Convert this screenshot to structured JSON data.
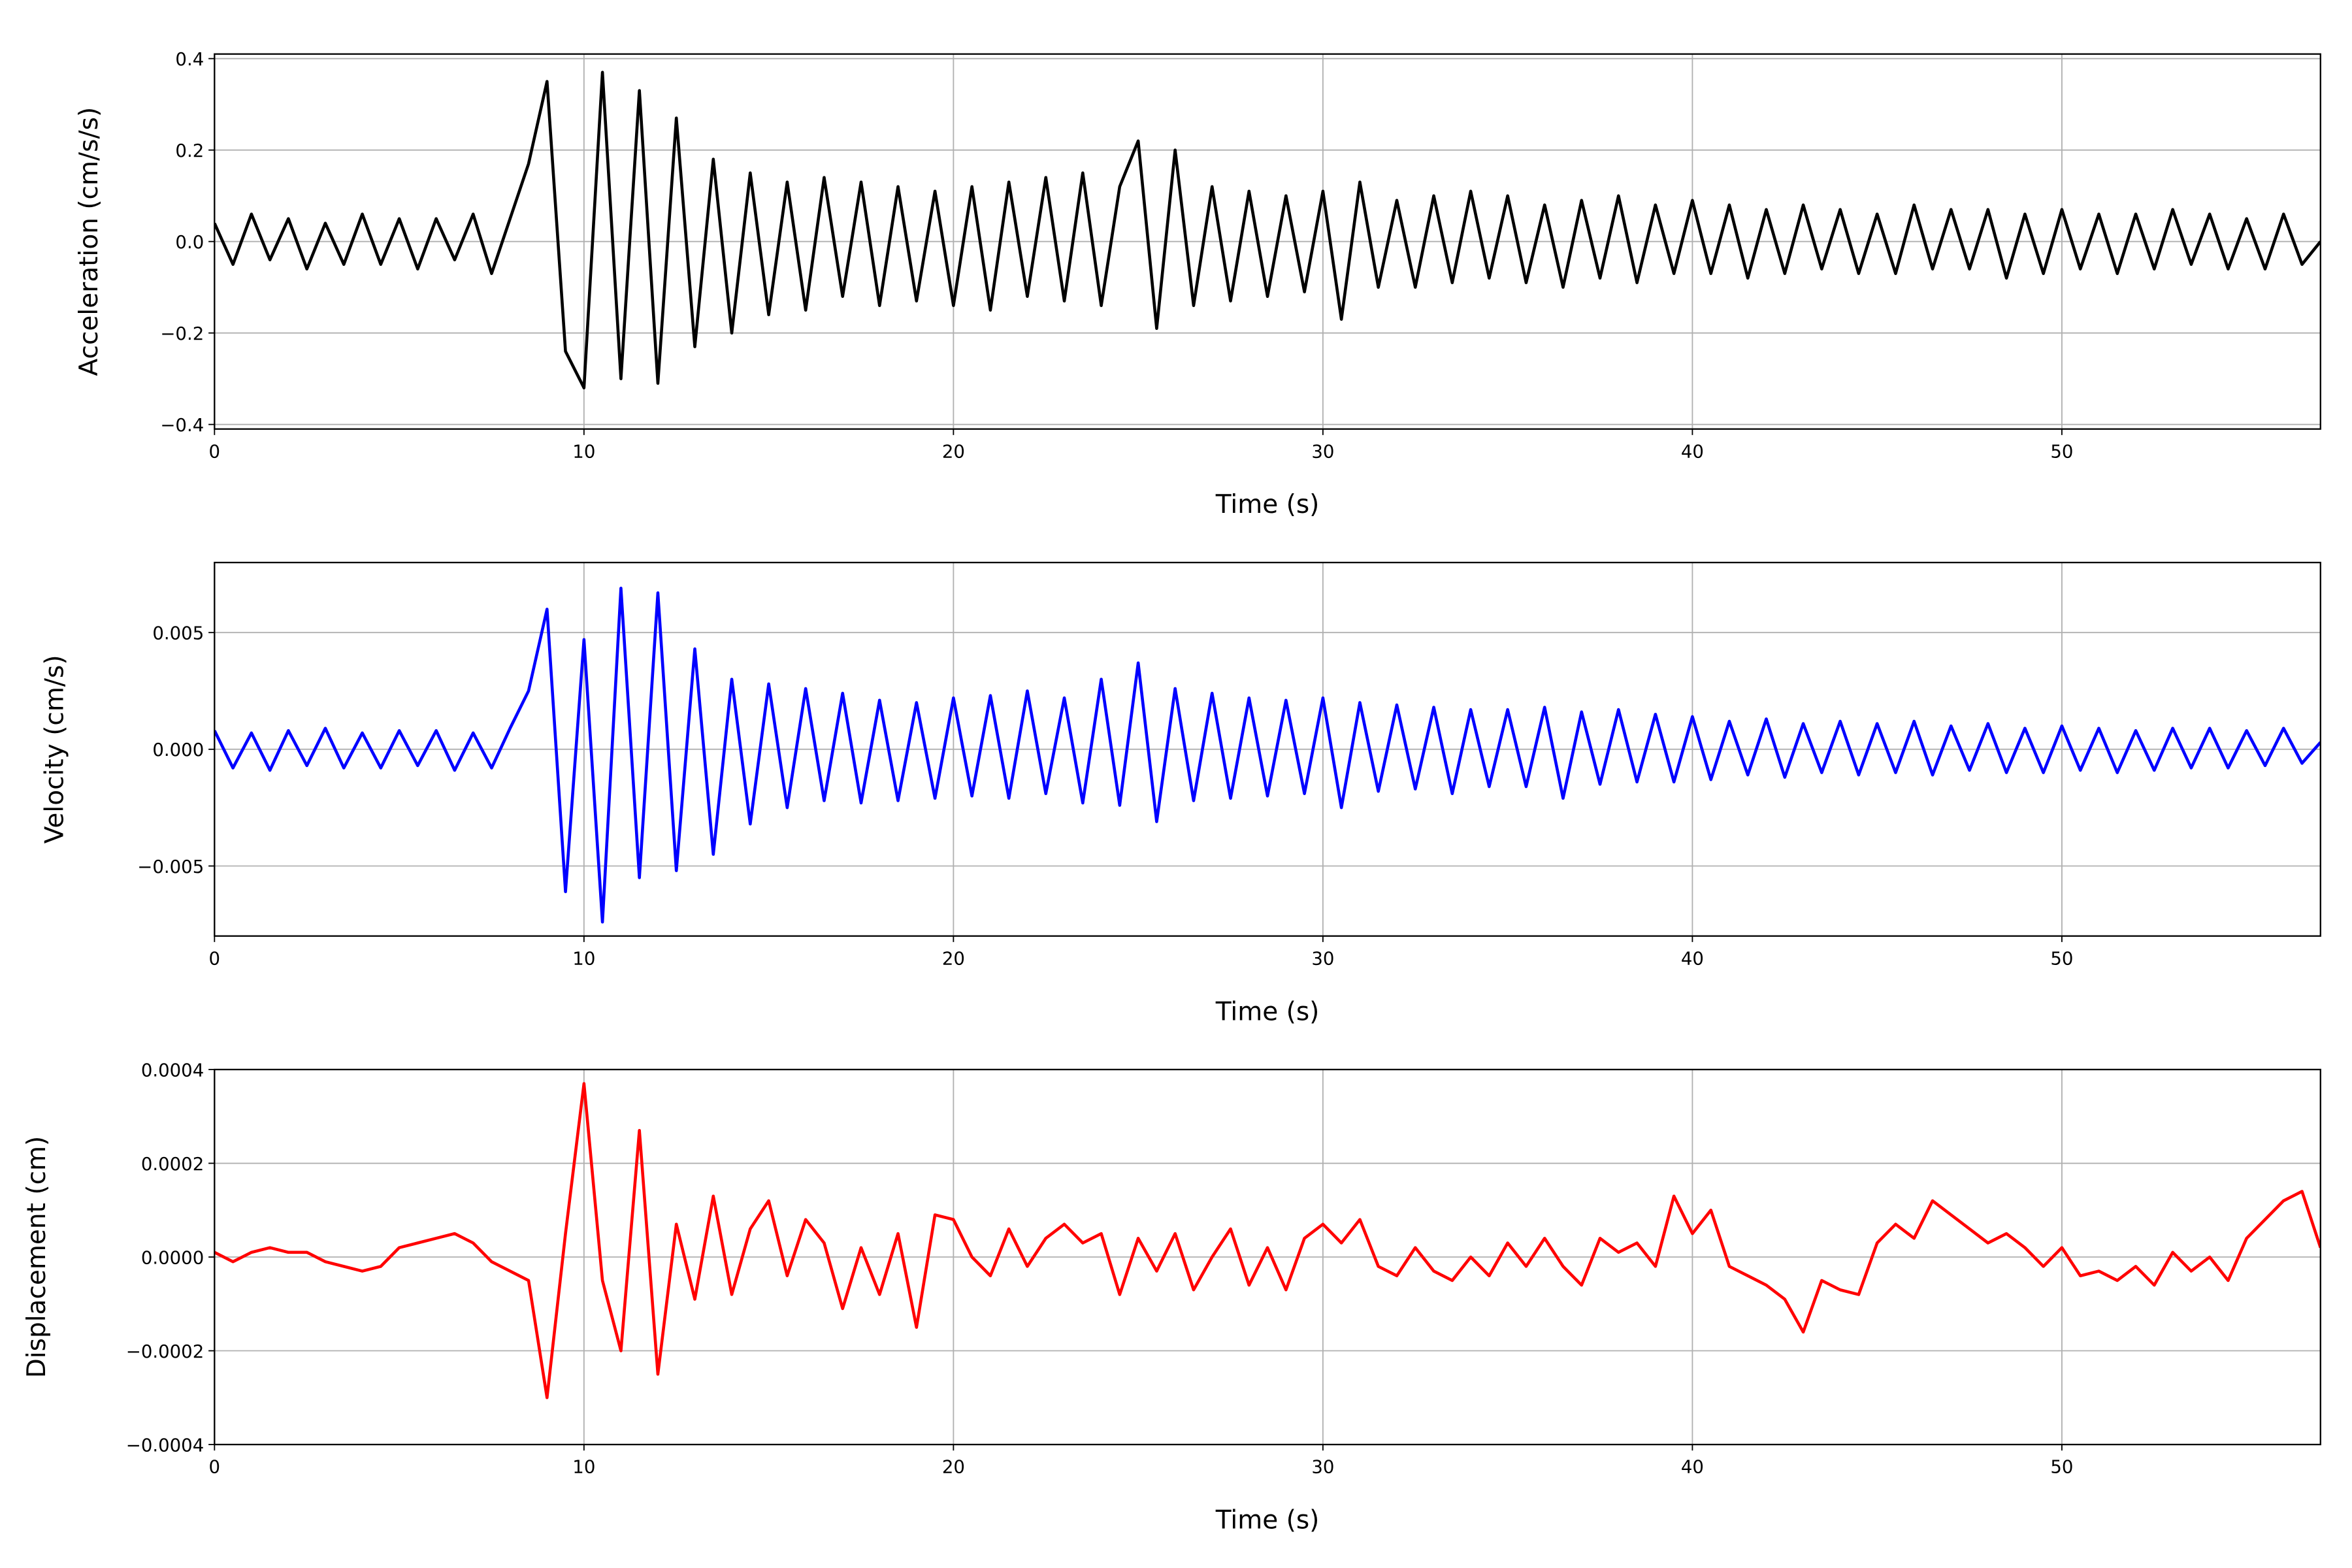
{
  "chart_data": [
    {
      "type": "line",
      "xlabel": "Time (s)",
      "ylabel": "Acceleration (cm/s/s)",
      "color": "#000000",
      "grid": true,
      "xlim": [
        0,
        57
      ],
      "xticks": [
        0,
        10,
        20,
        30,
        40,
        50
      ],
      "ylim": [
        -0.41,
        0.41
      ],
      "yticks": [
        {
          "value": -0.4,
          "label": "−0.4"
        },
        {
          "value": -0.2,
          "label": "−0.2"
        },
        {
          "value": 0,
          "label": "0.0"
        },
        0.2,
        0.4
      ],
      "x": [
        0,
        0.5,
        1,
        1.5,
        2,
        2.5,
        3,
        3.5,
        4,
        4.5,
        5,
        5.5,
        6,
        6.5,
        7,
        7.5,
        8,
        8.5,
        9,
        9.5,
        10,
        10.5,
        11,
        11.5,
        12,
        12.5,
        13,
        13.5,
        14,
        14.5,
        15,
        15.5,
        16,
        16.5,
        17,
        17.5,
        18,
        18.5,
        19,
        19.5,
        20,
        20.5,
        21,
        21.5,
        22,
        22.5,
        23,
        23.5,
        24,
        24.5,
        25,
        25.5,
        26,
        26.5,
        27,
        27.5,
        28,
        28.5,
        29,
        29.5,
        30,
        30.5,
        31,
        31.5,
        32,
        32.5,
        33,
        33.5,
        34,
        34.5,
        35,
        35.5,
        36,
        36.5,
        37,
        37.5,
        38,
        38.5,
        39,
        39.5,
        40,
        40.5,
        41,
        41.5,
        42,
        42.5,
        43,
        43.5,
        44,
        44.5,
        45,
        45.5,
        46,
        46.5,
        47,
        47.5,
        48,
        48.5,
        49,
        49.5,
        50,
        50.5,
        51,
        51.5,
        52,
        52.5,
        53,
        53.5,
        54,
        54.5,
        55,
        55.5,
        56,
        56.5,
        57
      ],
      "values": [
        0.04,
        -0.05,
        0.06,
        -0.04,
        0.05,
        -0.06,
        0.04,
        -0.05,
        0.06,
        -0.05,
        0.05,
        -0.06,
        0.05,
        -0.04,
        0.06,
        -0.07,
        0.05,
        0.17,
        0.35,
        -0.24,
        -0.32,
        0.37,
        -0.3,
        0.33,
        -0.31,
        0.27,
        -0.23,
        0.18,
        -0.2,
        0.15,
        -0.16,
        0.13,
        -0.15,
        0.14,
        -0.12,
        0.13,
        -0.14,
        0.12,
        -0.13,
        0.11,
        -0.14,
        0.12,
        -0.15,
        0.13,
        -0.12,
        0.14,
        -0.13,
        0.15,
        -0.14,
        0.12,
        0.22,
        -0.19,
        0.2,
        -0.14,
        0.12,
        -0.13,
        0.11,
        -0.12,
        0.1,
        -0.11,
        0.11,
        -0.17,
        0.13,
        -0.1,
        0.09,
        -0.1,
        0.1,
        -0.09,
        0.11,
        -0.08,
        0.1,
        -0.09,
        0.08,
        -0.1,
        0.09,
        -0.08,
        0.1,
        -0.09,
        0.08,
        -0.07,
        0.09,
        -0.07,
        0.08,
        -0.08,
        0.07,
        -0.07,
        0.08,
        -0.06,
        0.07,
        -0.07,
        0.06,
        -0.07,
        0.08,
        -0.06,
        0.07,
        -0.06,
        0.07,
        -0.08,
        0.06,
        -0.07,
        0.07,
        -0.06,
        0.06,
        -0.07,
        0.06,
        -0.06,
        0.07,
        -0.05,
        0.06,
        -0.06,
        0.05,
        -0.06,
        0.06,
        -0.05,
        0.0
      ]
    },
    {
      "type": "line",
      "xlabel": "Time (s)",
      "ylabel": "Velocity (cm/s)",
      "color": "#0000ff",
      "grid": true,
      "xlim": [
        0,
        57
      ],
      "xticks": [
        0,
        10,
        20,
        30,
        40,
        50
      ],
      "ylim": [
        -0.008,
        0.008
      ],
      "yticks": [
        {
          "value": -0.005,
          "label": "−0.005"
        },
        {
          "value": 0,
          "label": "0.000"
        },
        0.005
      ],
      "x": [
        0,
        0.5,
        1,
        1.5,
        2,
        2.5,
        3,
        3.5,
        4,
        4.5,
        5,
        5.5,
        6,
        6.5,
        7,
        7.5,
        8,
        8.5,
        9,
        9.5,
        10,
        10.5,
        11,
        11.5,
        12,
        12.5,
        13,
        13.5,
        14,
        14.5,
        15,
        15.5,
        16,
        16.5,
        17,
        17.5,
        18,
        18.5,
        19,
        19.5,
        20,
        20.5,
        21,
        21.5,
        22,
        22.5,
        23,
        23.5,
        24,
        24.5,
        25,
        25.5,
        26,
        26.5,
        27,
        27.5,
        28,
        28.5,
        29,
        29.5,
        30,
        30.5,
        31,
        31.5,
        32,
        32.5,
        33,
        33.5,
        34,
        34.5,
        35,
        35.5,
        36,
        36.5,
        37,
        37.5,
        38,
        38.5,
        39,
        39.5,
        40,
        40.5,
        41,
        41.5,
        42,
        42.5,
        43,
        43.5,
        44,
        44.5,
        45,
        45.5,
        46,
        46.5,
        47,
        47.5,
        48,
        48.5,
        49,
        49.5,
        50,
        50.5,
        51,
        51.5,
        52,
        52.5,
        53,
        53.5,
        54,
        54.5,
        55,
        55.5,
        56,
        56.5,
        57
      ],
      "values": [
        0.0008,
        -0.0008,
        0.0007,
        -0.0009,
        0.0008,
        -0.0007,
        0.0009,
        -0.0008,
        0.0007,
        -0.0008,
        0.0008,
        -0.0007,
        0.0008,
        -0.0009,
        0.0007,
        -0.0008,
        0.0009,
        0.0025,
        0.006,
        -0.0061,
        0.0047,
        -0.0074,
        0.0069,
        -0.0055,
        0.0067,
        -0.0052,
        0.0043,
        -0.0045,
        0.003,
        -0.0032,
        0.0028,
        -0.0025,
        0.0026,
        -0.0022,
        0.0024,
        -0.0023,
        0.0021,
        -0.0022,
        0.002,
        -0.0021,
        0.0022,
        -0.002,
        0.0023,
        -0.0021,
        0.0025,
        -0.0019,
        0.0022,
        -0.0023,
        0.003,
        -0.0024,
        0.0037,
        -0.0031,
        0.0026,
        -0.0022,
        0.0024,
        -0.0021,
        0.0022,
        -0.002,
        0.0021,
        -0.0019,
        0.0022,
        -0.0025,
        0.002,
        -0.0018,
        0.0019,
        -0.0017,
        0.0018,
        -0.0019,
        0.0017,
        -0.0016,
        0.0017,
        -0.0016,
        0.0018,
        -0.0021,
        0.0016,
        -0.0015,
        0.0017,
        -0.0014,
        0.0015,
        -0.0014,
        0.0014,
        -0.0013,
        0.0012,
        -0.0011,
        0.0013,
        -0.0012,
        0.0011,
        -0.001,
        0.0012,
        -0.0011,
        0.0011,
        -0.001,
        0.0012,
        -0.0011,
        0.001,
        -0.0009,
        0.0011,
        -0.001,
        0.0009,
        -0.001,
        0.001,
        -0.0009,
        0.0009,
        -0.001,
        0.0008,
        -0.0009,
        0.0009,
        -0.0008,
        0.0009,
        -0.0008,
        0.0008,
        -0.0007,
        0.0009,
        -0.0006,
        0.0003
      ]
    },
    {
      "type": "line",
      "xlabel": "Time (s)",
      "ylabel": "Displacement (cm)",
      "color": "#ff0000",
      "grid": true,
      "xlim": [
        0,
        57
      ],
      "xticks": [
        0,
        10,
        20,
        30,
        40,
        50
      ],
      "ylim": [
        -0.0004,
        0.0004
      ],
      "yticks": [
        {
          "value": -0.0004,
          "label": "−0.0004"
        },
        {
          "value": -0.0002,
          "label": "−0.0002"
        },
        {
          "value": 0,
          "label": "0.0000"
        },
        0.0002,
        0.0004
      ],
      "x": [
        0,
        0.5,
        1,
        1.5,
        2,
        2.5,
        3,
        3.5,
        4,
        4.5,
        5,
        5.5,
        6,
        6.5,
        7,
        7.5,
        8,
        8.5,
        9,
        9.5,
        10,
        10.5,
        11,
        11.5,
        12,
        12.5,
        13,
        13.5,
        14,
        14.5,
        15,
        15.5,
        16,
        16.5,
        17,
        17.5,
        18,
        18.5,
        19,
        19.5,
        20,
        20.5,
        21,
        21.5,
        22,
        22.5,
        23,
        23.5,
        24,
        24.5,
        25,
        25.5,
        26,
        26.5,
        27,
        27.5,
        28,
        28.5,
        29,
        29.5,
        30,
        30.5,
        31,
        31.5,
        32,
        32.5,
        33,
        33.5,
        34,
        34.5,
        35,
        35.5,
        36,
        36.5,
        37,
        37.5,
        38,
        38.5,
        39,
        39.5,
        40,
        40.5,
        41,
        41.5,
        42,
        42.5,
        43,
        43.5,
        44,
        44.5,
        45,
        45.5,
        46,
        46.5,
        47,
        47.5,
        48,
        48.5,
        49,
        49.5,
        50,
        50.5,
        51,
        51.5,
        52,
        52.5,
        53,
        53.5,
        54,
        54.5,
        55,
        55.5,
        56,
        56.5,
        57
      ],
      "values": [
        1e-05,
        -1e-05,
        1e-05,
        2e-05,
        1e-05,
        1e-05,
        -1e-05,
        -2e-05,
        -3e-05,
        -2e-05,
        2e-05,
        3e-05,
        4e-05,
        5e-05,
        3e-05,
        -1e-05,
        -3e-05,
        -5e-05,
        -0.0003,
        5e-05,
        0.00037,
        -5e-05,
        -0.0002,
        0.00027,
        -0.00025,
        7e-05,
        -9e-05,
        0.00013,
        -8e-05,
        6e-05,
        0.00012,
        -4e-05,
        8e-05,
        3e-05,
        -0.00011,
        2e-05,
        -8e-05,
        5e-05,
        -0.00015,
        9e-05,
        8e-05,
        0.0,
        -4e-05,
        6e-05,
        -2e-05,
        4e-05,
        7e-05,
        3e-05,
        5e-05,
        -8e-05,
        4e-05,
        -3e-05,
        5e-05,
        -7e-05,
        0.0,
        6e-05,
        -6e-05,
        2e-05,
        -7e-05,
        4e-05,
        7e-05,
        3e-05,
        8e-05,
        -2e-05,
        -4e-05,
        2e-05,
        -3e-05,
        -5e-05,
        0.0,
        -4e-05,
        3e-05,
        -2e-05,
        4e-05,
        -2e-05,
        -6e-05,
        4e-05,
        1e-05,
        3e-05,
        -2e-05,
        0.00013,
        5e-05,
        0.0001,
        -2e-05,
        -4e-05,
        -6e-05,
        -9e-05,
        -0.00016,
        -5e-05,
        -7e-05,
        -8e-05,
        3e-05,
        7e-05,
        4e-05,
        0.00012,
        9e-05,
        6e-05,
        3e-05,
        5e-05,
        2e-05,
        -2e-05,
        2e-05,
        -4e-05,
        -3e-05,
        -5e-05,
        -2e-05,
        -6e-05,
        1e-05,
        -3e-05,
        0.0,
        -5e-05,
        4e-05,
        8e-05,
        0.00012,
        0.00014,
        2e-05
      ]
    }
  ]
}
